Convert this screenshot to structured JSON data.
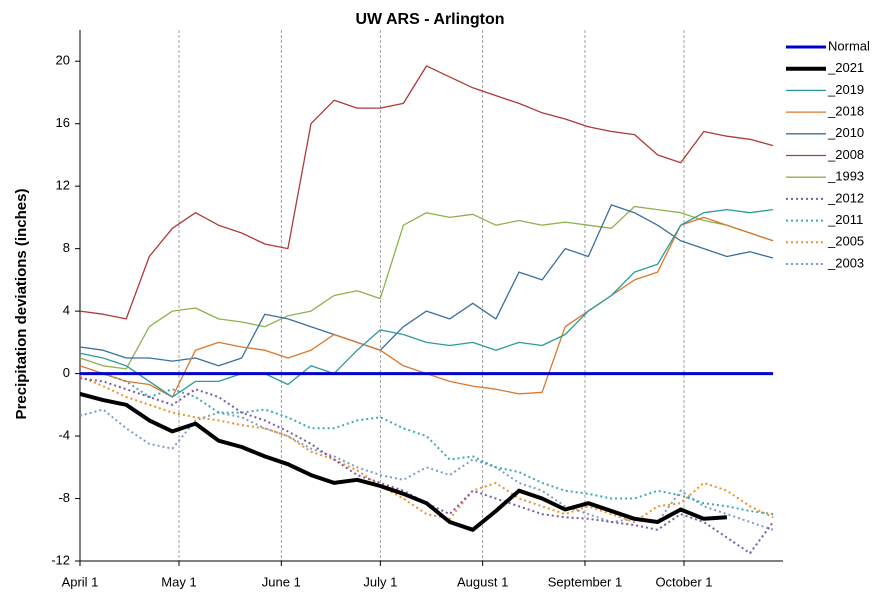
{
  "chart_data": {
    "type": "line",
    "title": "UW ARS - Arlington",
    "y_label": "Precipitation deviations (inches)",
    "x": [
      0,
      7,
      14,
      21,
      28,
      35,
      42,
      49,
      56,
      63,
      70,
      77,
      84,
      91,
      98,
      105,
      112,
      119,
      126,
      133,
      140,
      147,
      154,
      161,
      168,
      175,
      182,
      189,
      196,
      203,
      210
    ],
    "xlim": [
      0,
      213
    ],
    "xticks": [
      {
        "value": 0,
        "label": "April 1"
      },
      {
        "value": 30,
        "label": "May 1"
      },
      {
        "value": 61,
        "label": "June 1"
      },
      {
        "value": 91,
        "label": "July 1"
      },
      {
        "value": 122,
        "label": "August 1"
      },
      {
        "value": 153,
        "label": "September 1"
      },
      {
        "value": 183,
        "label": "October 1"
      }
    ],
    "ylim": [
      -12,
      22
    ],
    "yticks": [
      -12,
      -8,
      -4,
      0,
      4,
      8,
      12,
      16,
      20
    ],
    "grid": "x",
    "legend": "right",
    "series": [
      {
        "name": "Normal",
        "color": "#0000cc",
        "linewidth": 3,
        "linestyle": "solid",
        "values": [
          0,
          0,
          0,
          0,
          0,
          0,
          0,
          0,
          0,
          0,
          0,
          0,
          0,
          0,
          0,
          0,
          0,
          0,
          0,
          0,
          0,
          0,
          0,
          0,
          0,
          0,
          0,
          0,
          0,
          0,
          0
        ]
      },
      {
        "name": "_2021",
        "color": "#000000",
        "linewidth": 4,
        "linestyle": "solid",
        "values": [
          -1.3,
          -1.7,
          -2,
          -3,
          -3.7,
          -3.2,
          -4.3,
          -4.7,
          -5.3,
          -5.8,
          -6.5,
          -7,
          -6.8,
          -7.2,
          -7.7,
          -8.3,
          -9.5,
          -10,
          -8.8,
          -7.5,
          -8,
          -8.7,
          -8.3,
          -8.8,
          -9.3,
          -9.5,
          -8.7,
          -9.3,
          -9.2,
          null,
          null
        ]
      },
      {
        "name": "_2019",
        "color": "#2e9a9a",
        "linewidth": 1.3,
        "linestyle": "solid",
        "values": [
          1.3,
          1,
          0.5,
          -0.5,
          -1.5,
          -0.5,
          -0.5,
          0,
          0,
          -0.7,
          0.5,
          0,
          1.5,
          2.8,
          2.5,
          2,
          1.8,
          2,
          1.5,
          2,
          1.8,
          2.5,
          4,
          5,
          6.5,
          7,
          9.5,
          10.3,
          10.5,
          10.3,
          10.5
        ]
      },
      {
        "name": "_2018",
        "color": "#d9782d",
        "linewidth": 1.3,
        "linestyle": "solid",
        "values": [
          0.5,
          0,
          -0.5,
          -0.7,
          -1.5,
          1.5,
          2,
          1.7,
          1.5,
          1,
          1.5,
          2.5,
          2,
          1.5,
          0.5,
          0,
          -0.5,
          -0.8,
          -1,
          -1.3,
          -1.2,
          3,
          4,
          5,
          6,
          6.5,
          9.5,
          10,
          9.5,
          9,
          8.5
        ]
      },
      {
        "name": "_2010",
        "color": "#3a6fa0",
        "linewidth": 1.3,
        "linestyle": "solid",
        "values": [
          1.7,
          1.5,
          1,
          1,
          0.8,
          1,
          0.5,
          1,
          3.8,
          3.5,
          3,
          2.5,
          2,
          1.5,
          3,
          4,
          3.5,
          4.5,
          3.5,
          6.5,
          6,
          8,
          7.5,
          10.8,
          10.3,
          9.5,
          8.5,
          8,
          7.5,
          7.8,
          7.4
        ]
      },
      {
        "name": "_2008",
        "color": "#b03a36",
        "linewidth": 1.3,
        "linestyle": "solid",
        "values": [
          4,
          3.8,
          3.5,
          7.5,
          9.3,
          10.3,
          9.5,
          9,
          8.3,
          8,
          16,
          17.5,
          17,
          17,
          17.3,
          19.7,
          19,
          18.3,
          17.8,
          17.3,
          16.7,
          16.3,
          15.8,
          15.5,
          15.3,
          14,
          13.5,
          15.5,
          15.2,
          15,
          14.6
        ]
      },
      {
        "name": "_1993",
        "color": "#8fb14d",
        "linewidth": 1.3,
        "linestyle": "solid",
        "values": [
          1,
          0.5,
          0.3,
          3,
          4,
          4.2,
          3.5,
          3.3,
          3,
          3.7,
          4,
          5,
          5.3,
          4.8,
          9.5,
          10.3,
          10,
          10.2,
          9.5,
          9.8,
          9.5,
          9.7,
          9.5,
          9.3,
          10.7,
          10.5,
          10.3,
          9.8,
          9.5,
          9,
          8.5
        ]
      },
      {
        "name": "_2012",
        "color": "#7a5aa6",
        "linewidth": 2,
        "linestyle": "dotted",
        "values": [
          -0.3,
          -0.5,
          -1,
          -1.5,
          -2,
          -1,
          -1.5,
          -2.5,
          -3,
          -3.7,
          -4.5,
          -5.5,
          -6.5,
          -7,
          -7.5,
          -8.3,
          -9,
          -7.5,
          -8,
          -8.5,
          -9,
          -9.2,
          -9.3,
          -9.5,
          -9.7,
          -10,
          -9,
          -9.5,
          -10.5,
          -11.5,
          -9.5
        ]
      },
      {
        "name": "_2011",
        "color": "#3aabb5",
        "linewidth": 2,
        "linestyle": "dotted",
        "values": [
          0,
          0,
          -0.5,
          -1.5,
          -1,
          -1.5,
          -2.5,
          -2.5,
          -2.3,
          -2.8,
          -3.5,
          -3.5,
          -3,
          -2.8,
          -3.5,
          -4,
          -5.5,
          -5.3,
          -6,
          -6.3,
          -7,
          -7.5,
          -7.7,
          -8,
          -8,
          -7.5,
          -7.8,
          -8.3,
          -8.5,
          -8.8,
          -9
        ]
      },
      {
        "name": "_2005",
        "color": "#f0902a",
        "linewidth": 2,
        "linestyle": "dotted",
        "values": [
          -0.2,
          -0.8,
          -1.5,
          -2,
          -2.5,
          -2.8,
          -3,
          -3.3,
          -3.5,
          -4,
          -5,
          -5.5,
          -6.2,
          -7.2,
          -8,
          -9,
          -9.3,
          -7.5,
          -7,
          -8,
          -8.5,
          -9,
          -8.5,
          -9,
          -9.5,
          -8.5,
          -8.3,
          -7,
          -7.5,
          -8.5,
          -9.2
        ]
      },
      {
        "name": "_2003",
        "color": "#7f9bc8",
        "linewidth": 2,
        "linestyle": "dotted",
        "values": [
          -2.7,
          -2.3,
          -3.5,
          -4.5,
          -4.8,
          -3,
          -2.5,
          -2.8,
          -3.5,
          -4,
          -4.8,
          -5.3,
          -6,
          -6.5,
          -6.8,
          -6,
          -6.5,
          -5.5,
          -6,
          -7,
          -7.5,
          -8.5,
          -9,
          -9.5,
          -9.3,
          -9.5,
          -7.5,
          -8.5,
          -9,
          -9.5,
          -10
        ]
      }
    ]
  }
}
